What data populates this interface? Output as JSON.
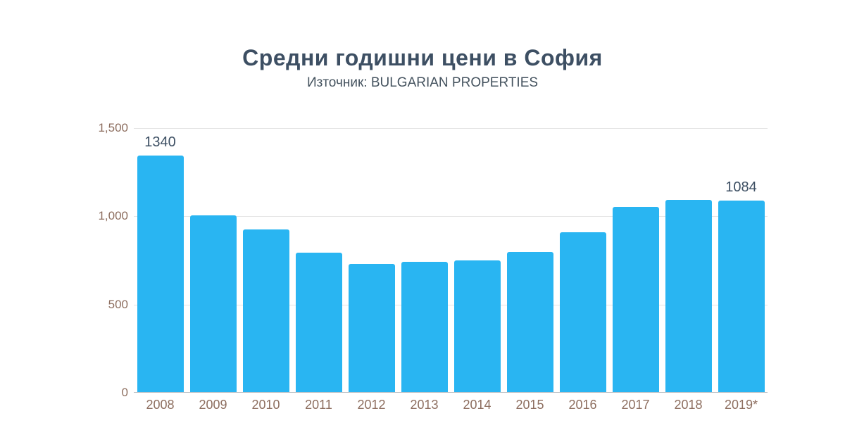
{
  "header": {
    "title": "Средни годишни цени в София",
    "subtitle": "Източник: BULGARIAN PROPERTIES"
  },
  "chart_data": {
    "type": "bar",
    "title": "Средни годишни цени в София",
    "subtitle": "Източник: BULGARIAN PROPERTIES",
    "categories": [
      "2008",
      "2009",
      "2010",
      "2011",
      "2012",
      "2013",
      "2014",
      "2015",
      "2016",
      "2017",
      "2018",
      "2019*"
    ],
    "values": [
      1340,
      1000,
      920,
      790,
      725,
      740,
      745,
      795,
      905,
      1050,
      1090,
      1084
    ],
    "data_labels": [
      "1340",
      null,
      null,
      null,
      null,
      null,
      null,
      null,
      null,
      null,
      null,
      "1084"
    ],
    "y_ticks": [
      "1,500",
      "1,000",
      "500",
      "0"
    ],
    "y_tick_values": [
      1500,
      1000,
      500,
      0
    ],
    "ylim": [
      0,
      1500
    ],
    "xlabel": "",
    "ylabel": "",
    "grid": "horizontal",
    "legend": "none"
  },
  "colors": {
    "bar": "#29b5f2",
    "title": "#3d4f63",
    "subtitle": "#45535f",
    "axis_tick_label": "#8d6e5f",
    "value_label": "#3d4f63",
    "gridline": "#e4e4e4",
    "baseline": "#b9bec3",
    "background": "#ffffff"
  }
}
